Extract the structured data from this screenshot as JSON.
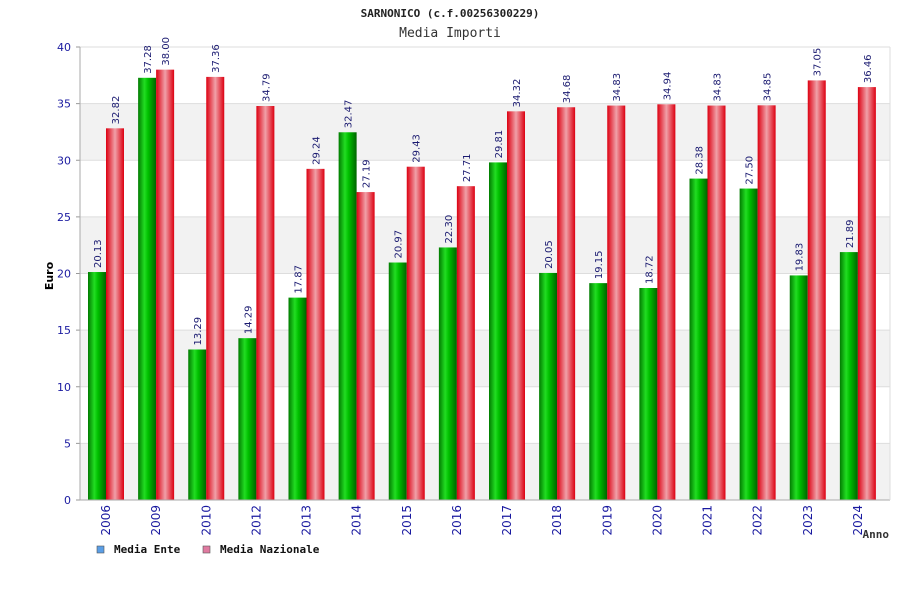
{
  "chart_data": {
    "type": "bar",
    "title": "SARNONICO (c.f.00256300229)",
    "subtitle": "Media Importi",
    "xlabel": "Anno",
    "ylabel": "Euro",
    "ylim": [
      0,
      40
    ],
    "yticks": [
      0,
      5,
      10,
      15,
      20,
      25,
      30,
      35,
      40
    ],
    "grid": true,
    "legend_position": "bottom-left",
    "categories": [
      "2006",
      "2009",
      "2010",
      "2012",
      "2013",
      "2014",
      "2015",
      "2016",
      "2017",
      "2018",
      "2019",
      "2020",
      "2021",
      "2022",
      "2023",
      "2024"
    ],
    "series": [
      {
        "name": "Media Ente",
        "color": "#00aa00",
        "legend_color": "#5a9ee6",
        "values": [
          20.13,
          37.28,
          13.29,
          14.29,
          17.87,
          32.47,
          20.97,
          22.3,
          29.81,
          20.05,
          19.15,
          18.72,
          28.38,
          27.5,
          19.83,
          21.89
        ],
        "labels": [
          "20.13",
          "37.28",
          "13.29",
          "14.29",
          "17.87",
          "32.47",
          "20.97",
          "22.30",
          "29.81",
          "20.05",
          "19.15",
          "18.72",
          "28.38",
          "27.50",
          "19.83",
          "21.89"
        ]
      },
      {
        "name": "Media Nazionale",
        "color": "#ee1122",
        "legend_color": "#e07aa0",
        "values": [
          32.82,
          38.0,
          37.36,
          34.79,
          29.24,
          27.19,
          29.43,
          27.71,
          34.32,
          34.68,
          34.83,
          34.94,
          34.83,
          34.85,
          37.05,
          36.46
        ],
        "labels": [
          "32.82",
          "38.00",
          "37.36",
          "34.79",
          "29.24",
          "27.19",
          "29.43",
          "27.71",
          "34.32",
          "34.68",
          "34.83",
          "34.94",
          "34.83",
          "34.85",
          "37.05",
          "36.46"
        ]
      }
    ]
  }
}
